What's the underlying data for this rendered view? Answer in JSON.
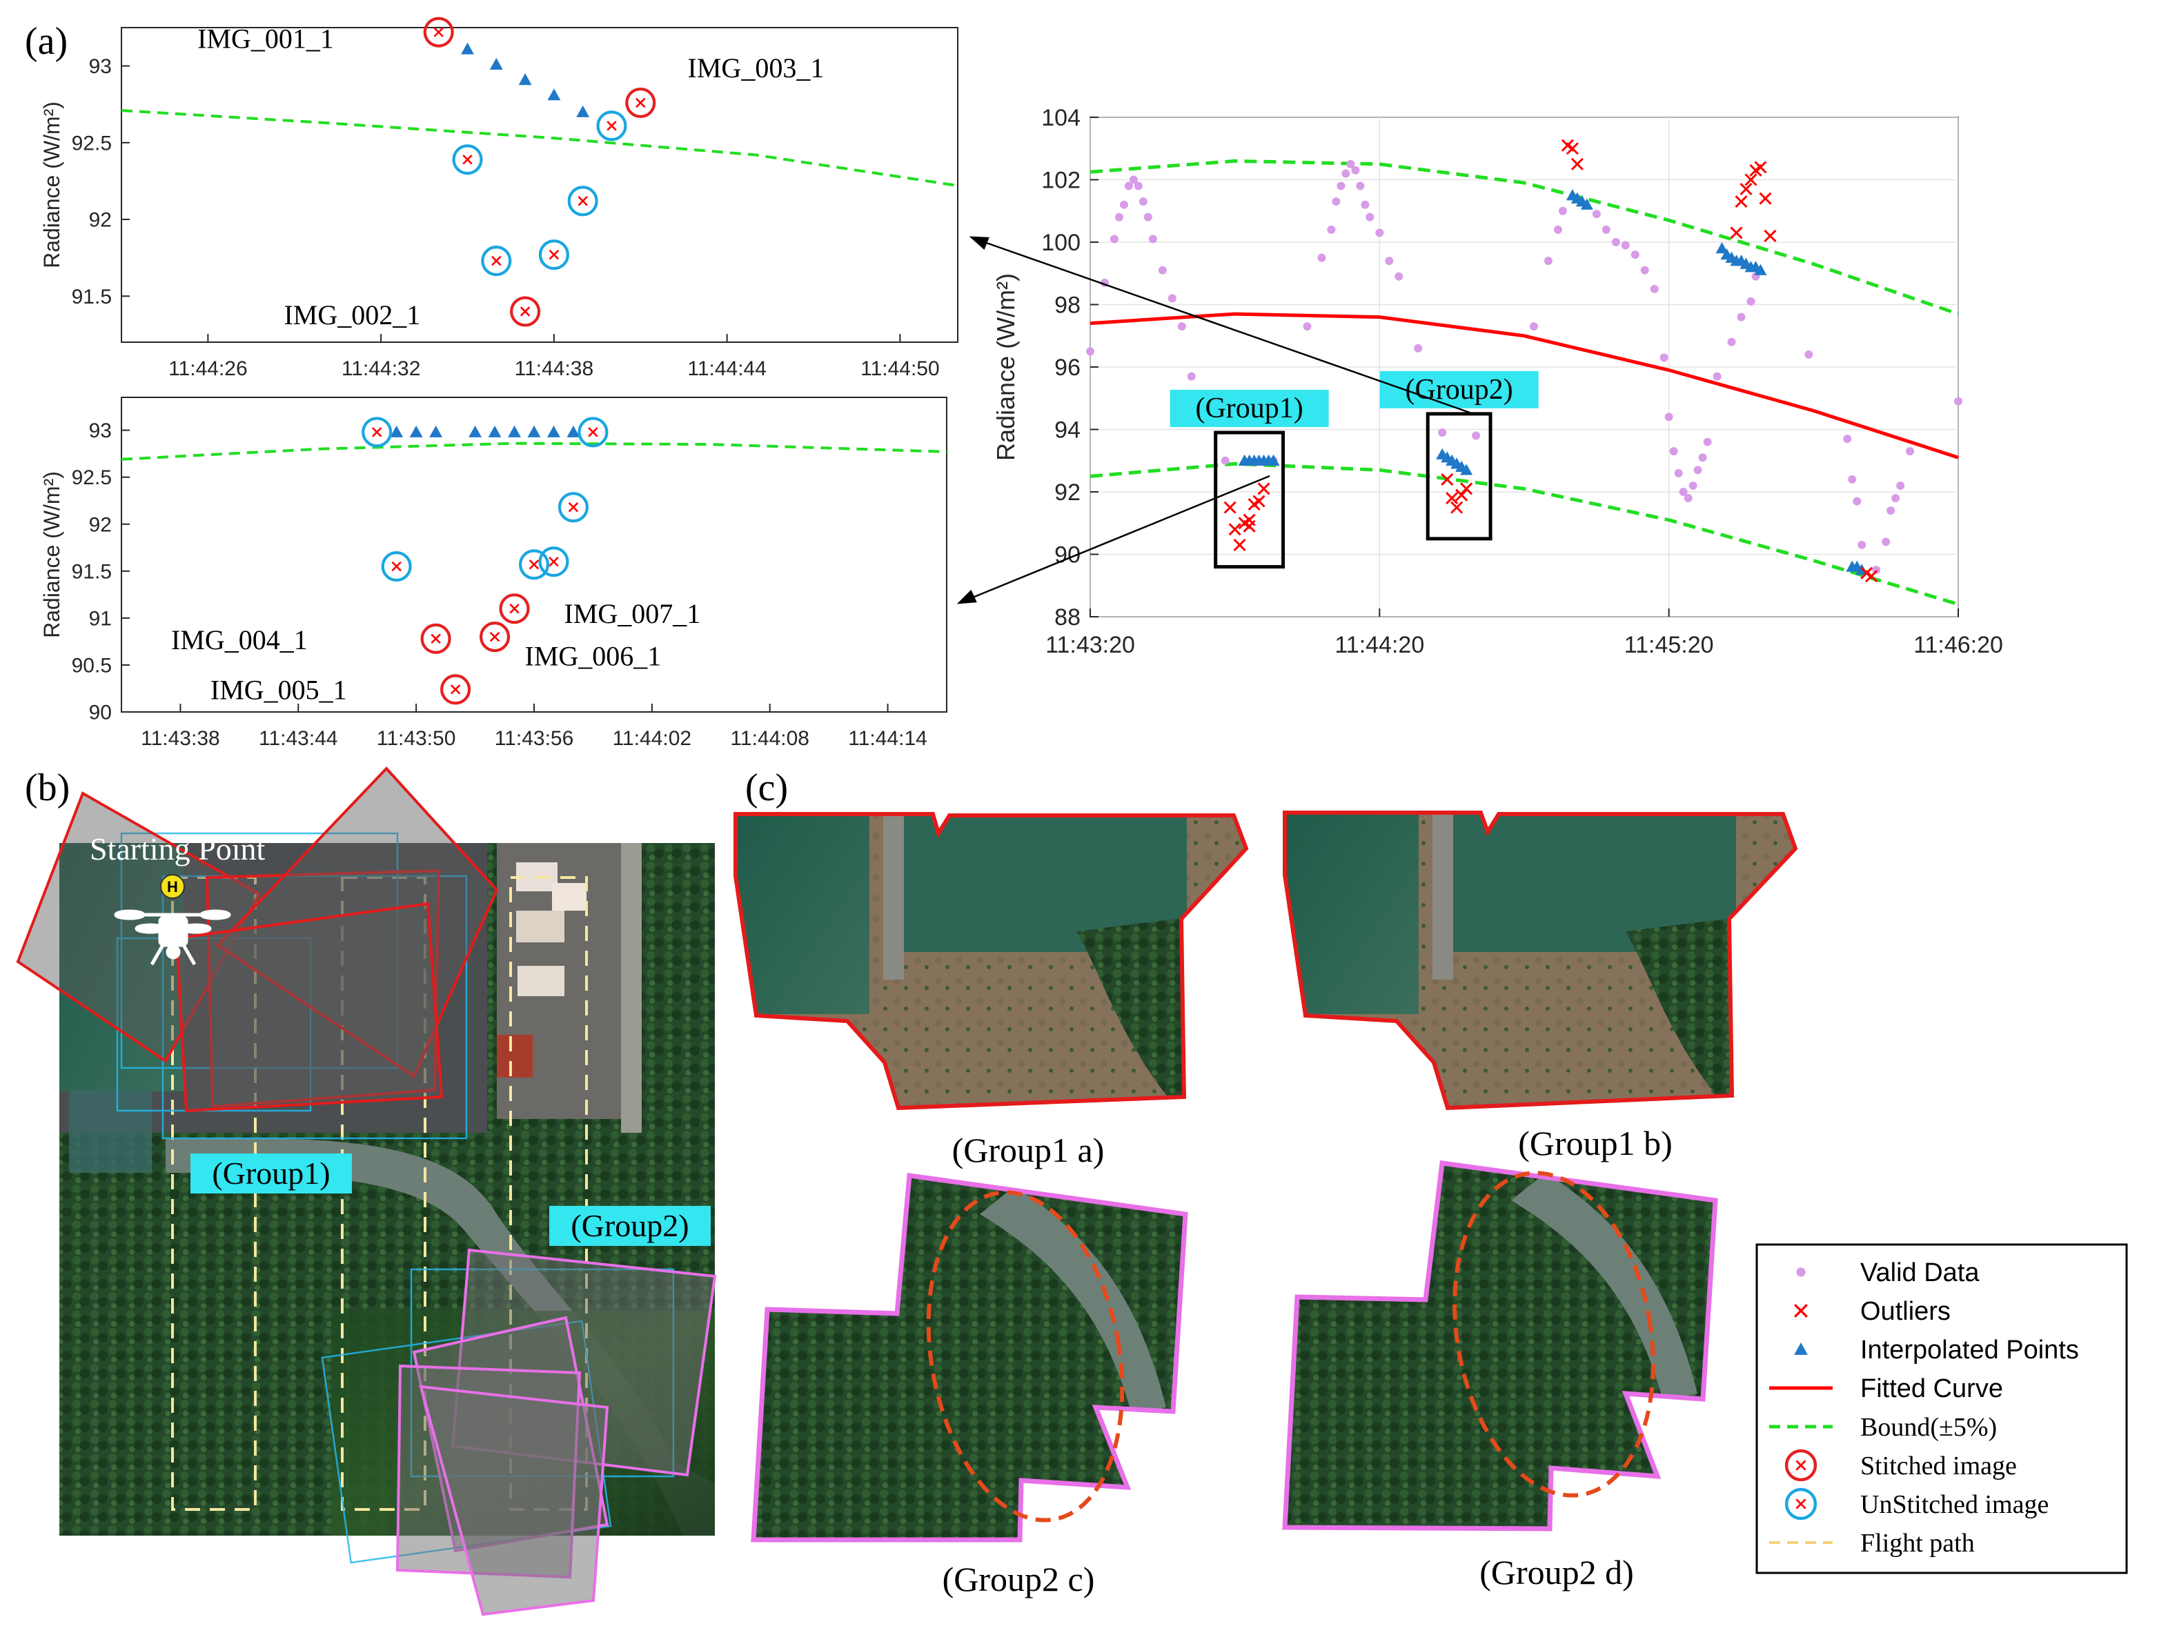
{
  "panels": {
    "a": "(a)",
    "b": "(b)",
    "c": "(c)"
  },
  "colors": {
    "valid": "#d89be8",
    "outlier": "#ff0000",
    "interp": "#1f78c8",
    "fit": "#ff0000",
    "bound": "#22dd22",
    "stitched": "#e62020",
    "unstitched": "#1aa6e0",
    "flight": "#f5d27a",
    "group2_outline": "#e870e8",
    "group_label_bg": "#33e6f0",
    "ellipse": "#e64a1a"
  },
  "chart_data": [
    {
      "id": "a1",
      "type": "scatter",
      "ylabel": "Radiance (W/m²)",
      "ylim": [
        91.2,
        93.25
      ],
      "xlim": [
        "11:44:23",
        "11:44:52"
      ],
      "yticks": [
        91.5,
        92,
        92.5,
        93
      ],
      "xticks": [
        "11:44:26",
        "11:44:32",
        "11:44:38",
        "11:44:44",
        "11:44:50"
      ],
      "bound_curve": [
        [
          "11:44:23",
          92.71
        ],
        [
          "11:44:30",
          92.63
        ],
        [
          "11:44:38",
          92.53
        ],
        [
          "11:44:45",
          92.42
        ],
        [
          "11:44:52",
          92.22
        ]
      ],
      "interpolated": [
        [
          "11:44:35",
          93.11
        ],
        [
          "11:44:36",
          93.01
        ],
        [
          "11:44:37",
          92.91
        ],
        [
          "11:44:38",
          92.81
        ],
        [
          "11:44:39",
          92.7
        ]
      ],
      "stitched": [
        [
          "11:44:34",
          93.22
        ],
        [
          "11:44:41",
          92.76
        ],
        [
          "11:44:37",
          91.4
        ]
      ],
      "unstitched": [
        [
          "11:44:35",
          92.39
        ],
        [
          "11:44:36",
          91.73
        ],
        [
          "11:44:38",
          91.77
        ],
        [
          "11:44:39",
          92.12
        ],
        [
          "11:44:40",
          92.61
        ]
      ],
      "labels": [
        {
          "text": "IMG_001_1",
          "x": "11:44:28",
          "y": 93.18
        },
        {
          "text": "IMG_003_1",
          "x": "11:44:45",
          "y": 92.99
        },
        {
          "text": "IMG_002_1",
          "x": "11:44:31",
          "y": 91.38
        }
      ]
    },
    {
      "id": "a2",
      "type": "scatter",
      "ylabel": "Radiance (W/m²)",
      "ylim": [
        90,
        93.35
      ],
      "xlim": [
        "11:43:35",
        "11:44:17"
      ],
      "yticks": [
        90,
        90.5,
        91,
        91.5,
        92,
        92.5,
        93
      ],
      "xticks": [
        "11:43:38",
        "11:43:44",
        "11:43:50",
        "11:43:56",
        "11:44:02",
        "11:44:08",
        "11:44:14"
      ],
      "bound_curve": [
        [
          "11:43:35",
          92.69
        ],
        [
          "11:43:45",
          92.8
        ],
        [
          "11:43:55",
          92.86
        ],
        [
          "11:44:05",
          92.85
        ],
        [
          "11:44:17",
          92.77
        ]
      ],
      "interpolated": [
        [
          "11:43:49",
          92.98
        ],
        [
          "11:43:50",
          92.98
        ],
        [
          "11:43:51",
          92.98
        ],
        [
          "11:43:53",
          92.98
        ],
        [
          "11:43:54",
          92.98
        ],
        [
          "11:43:55",
          92.98
        ],
        [
          "11:43:56",
          92.98
        ],
        [
          "11:43:57",
          92.98
        ],
        [
          "11:43:58",
          92.98
        ]
      ],
      "stitched": [
        [
          "11:43:51",
          90.78
        ],
        [
          "11:43:52",
          90.24
        ],
        [
          "11:43:54",
          90.8
        ],
        [
          "11:43:55",
          91.1
        ]
      ],
      "unstitched": [
        [
          "11:43:48",
          92.98
        ],
        [
          "11:43:59",
          92.98
        ],
        [
          "11:43:58",
          92.18
        ],
        [
          "11:43:57",
          91.6
        ],
        [
          "11:43:56",
          91.57
        ],
        [
          "11:43:49",
          91.55
        ]
      ],
      "labels": [
        {
          "text": "IMG_004_1",
          "x": "11:43:41",
          "y": 90.77
        },
        {
          "text": "IMG_005_1",
          "x": "11:43:43",
          "y": 90.24
        },
        {
          "text": "IMG_006_1",
          "x": "11:43:59",
          "y": 90.6
        },
        {
          "text": "IMG_007_1",
          "x": "11:44:01",
          "y": 91.05
        }
      ]
    },
    {
      "id": "main",
      "type": "scatter",
      "ylabel": "Radiance (W/m²)",
      "ylim": [
        88,
        104
      ],
      "xlim": [
        "11:43:20",
        "11:46:20"
      ],
      "yticks": [
        88,
        90,
        92,
        94,
        96,
        98,
        100,
        102,
        104
      ],
      "xticks": [
        "11:43:20",
        "11:44:20",
        "11:45:20",
        "11:46:20"
      ],
      "grid": true,
      "fitted_curve": [
        [
          "11:43:20",
          97.4
        ],
        [
          "11:43:50",
          97.7
        ],
        [
          "11:44:20",
          97.6
        ],
        [
          "11:44:50",
          97.0
        ],
        [
          "11:45:20",
          95.9
        ],
        [
          "11:45:50",
          94.6
        ],
        [
          "11:46:20",
          93.1
        ]
      ],
      "upper_bound": [
        [
          "11:43:20",
          102.25
        ],
        [
          "11:43:50",
          102.6
        ],
        [
          "11:44:20",
          102.5
        ],
        [
          "11:44:50",
          101.9
        ],
        [
          "11:45:20",
          100.7
        ],
        [
          "11:45:50",
          99.3
        ],
        [
          "11:46:20",
          97.7
        ]
      ],
      "lower_bound": [
        [
          "11:43:20",
          92.5
        ],
        [
          "11:43:50",
          92.9
        ],
        [
          "11:44:20",
          92.7
        ],
        [
          "11:44:50",
          92.1
        ],
        [
          "11:45:20",
          91.1
        ],
        [
          "11:45:50",
          89.8
        ],
        [
          "11:46:20",
          88.4
        ]
      ],
      "valid": [
        [
          "11:43:20",
          96.5
        ],
        [
          "11:43:23",
          98.7
        ],
        [
          "11:43:25",
          100.1
        ],
        [
          "11:43:26",
          100.8
        ],
        [
          "11:43:27",
          101.2
        ],
        [
          "11:43:28",
          101.8
        ],
        [
          "11:43:29",
          102
        ],
        [
          "11:43:30",
          101.8
        ],
        [
          "11:43:31",
          101.3
        ],
        [
          "11:43:32",
          100.8
        ],
        [
          "11:43:33",
          100.1
        ],
        [
          "11:43:35",
          99.1
        ],
        [
          "11:43:37",
          98.2
        ],
        [
          "11:43:39",
          97.3
        ],
        [
          "11:43:41",
          95.7
        ],
        [
          "11:43:48",
          93.0
        ],
        [
          "11:43:58",
          93.0
        ],
        [
          "11:44:05",
          97.3
        ],
        [
          "11:44:08",
          99.5
        ],
        [
          "11:44:10",
          100.4
        ],
        [
          "11:44:11",
          101.3
        ],
        [
          "11:44:12",
          101.8
        ],
        [
          "11:44:13",
          102.2
        ],
        [
          "11:44:14",
          102.5
        ],
        [
          "11:44:15",
          102.3
        ],
        [
          "11:44:16",
          101.8
        ],
        [
          "11:44:17",
          101.2
        ],
        [
          "11:44:18",
          100.8
        ],
        [
          "11:44:20",
          100.3
        ],
        [
          "11:44:22",
          99.4
        ],
        [
          "11:44:24",
          98.9
        ],
        [
          "11:44:28",
          96.6
        ],
        [
          "11:44:33",
          93.9
        ],
        [
          "11:44:40",
          93.8
        ],
        [
          "11:44:45",
          95.3
        ],
        [
          "11:44:52",
          97.3
        ],
        [
          "11:44:55",
          99.4
        ],
        [
          "11:44:57",
          100.4
        ],
        [
          "11:44:58",
          101
        ],
        [
          "11:45:05",
          100.9
        ],
        [
          "11:45:07",
          100.4
        ],
        [
          "11:45:09",
          100
        ],
        [
          "11:45:11",
          99.9
        ],
        [
          "11:45:13",
          99.6
        ],
        [
          "11:45:15",
          99.1
        ],
        [
          "11:45:17",
          98.5
        ],
        [
          "11:45:19",
          96.3
        ],
        [
          "11:45:20",
          94.4
        ],
        [
          "11:45:21",
          93.3
        ],
        [
          "11:45:22",
          92.6
        ],
        [
          "11:45:23",
          92.0
        ],
        [
          "11:45:24",
          91.8
        ],
        [
          "11:45:25",
          92.2
        ],
        [
          "11:45:26",
          92.7
        ],
        [
          "11:45:27",
          93.1
        ],
        [
          "11:45:28",
          93.6
        ],
        [
          "11:45:30",
          95.7
        ],
        [
          "11:45:33",
          96.8
        ],
        [
          "11:45:35",
          97.6
        ],
        [
          "11:45:37",
          98.1
        ],
        [
          "11:45:38",
          98.9
        ],
        [
          "11:45:49",
          96.4
        ],
        [
          "11:45:57",
          93.7
        ],
        [
          "11:45:58",
          92.4
        ],
        [
          "11:45:59",
          91.7
        ],
        [
          "11:46:00",
          90.3
        ],
        [
          "11:46:03",
          89.5
        ],
        [
          "11:46:05",
          90.4
        ],
        [
          "11:46:06",
          91.4
        ],
        [
          "11:46:07",
          91.8
        ],
        [
          "11:46:08",
          92.2
        ],
        [
          "11:46:10",
          93.3
        ],
        [
          "11:46:20",
          94.9
        ]
      ],
      "outliers": [
        [
          "11:43:49",
          91.5
        ],
        [
          "11:43:50",
          90.8
        ],
        [
          "11:43:51",
          90.3
        ],
        [
          "11:43:52",
          91.0
        ],
        [
          "11:43:53",
          90.9
        ],
        [
          "11:43:54",
          91.6
        ],
        [
          "11:43:55",
          91.7
        ],
        [
          "11:43:56",
          92.1
        ],
        [
          "11:43:53",
          91.1
        ],
        [
          "11:44:34",
          92.4
        ],
        [
          "11:44:35",
          91.8
        ],
        [
          "11:44:36",
          91.5
        ],
        [
          "11:44:37",
          91.9
        ],
        [
          "11:44:38",
          92.1
        ],
        [
          "11:44:59",
          103.1
        ],
        [
          "11:45:00",
          103.0
        ],
        [
          "11:45:01",
          102.5
        ],
        [
          "11:45:34",
          100.3
        ],
        [
          "11:45:35",
          101.3
        ],
        [
          "11:45:36",
          101.7
        ],
        [
          "11:45:37",
          102.0
        ],
        [
          "11:45:38",
          102.3
        ],
        [
          "11:45:39",
          102.4
        ],
        [
          "11:45:40",
          101.4
        ],
        [
          "11:45:41",
          100.2
        ],
        [
          "11:46:01",
          89.4
        ],
        [
          "11:46:02",
          89.3
        ]
      ],
      "interpolated": [
        [
          "11:43:52",
          93.0
        ],
        [
          "11:43:53",
          93.0
        ],
        [
          "11:43:54",
          93.0
        ],
        [
          "11:43:55",
          93.0
        ],
        [
          "11:43:56",
          93.0
        ],
        [
          "11:43:57",
          93.0
        ],
        [
          "11:43:58",
          93.0
        ],
        [
          "11:44:33",
          93.2
        ],
        [
          "11:44:34",
          93.1
        ],
        [
          "11:44:35",
          93.0
        ],
        [
          "11:44:36",
          92.9
        ],
        [
          "11:44:37",
          92.8
        ],
        [
          "11:44:38",
          92.7
        ],
        [
          "11:45:00",
          101.5
        ],
        [
          "11:45:01",
          101.4
        ],
        [
          "11:45:02",
          101.3
        ],
        [
          "11:45:03",
          101.2
        ],
        [
          "11:45:31",
          99.8
        ],
        [
          "11:45:32",
          99.6
        ],
        [
          "11:45:33",
          99.5
        ],
        [
          "11:45:34",
          99.4
        ],
        [
          "11:45:35",
          99.4
        ],
        [
          "11:45:36",
          99.3
        ],
        [
          "11:45:37",
          99.2
        ],
        [
          "11:45:38",
          99.2
        ],
        [
          "11:45:39",
          99.1
        ],
        [
          "11:45:58",
          89.6
        ],
        [
          "11:45:59",
          89.6
        ],
        [
          "11:46:00",
          89.5
        ]
      ],
      "groups": [
        {
          "label": "(Group1)",
          "x0": "11:43:46",
          "x1": "11:44:00",
          "y0": 89.6,
          "y1": 93.9
        },
        {
          "label": "(Group2)",
          "x0": "11:44:30",
          "x1": "11:44:43",
          "y0": 90.5,
          "y1": 94.5
        }
      ]
    }
  ],
  "legend": {
    "items": [
      {
        "key": "valid",
        "label": "Valid Data"
      },
      {
        "key": "outlier",
        "label": "Outliers"
      },
      {
        "key": "interp",
        "label": "Interpolated Points"
      },
      {
        "key": "fit",
        "label": "Fitted Curve"
      },
      {
        "key": "bound",
        "label": "Bound(±5%)"
      },
      {
        "key": "stitched",
        "label": "Stitched image"
      },
      {
        "key": "unstitched",
        "label": "UnStitched image"
      },
      {
        "key": "flight",
        "label": "Flight path"
      }
    ]
  },
  "map_b": {
    "starting_point": "Starting Point",
    "home_marker": "H",
    "group1": "(Group1)",
    "group2": "(Group2)"
  },
  "panel_c": {
    "captions": [
      "(Group1 a)",
      "(Group1 b)",
      "(Group2 c)",
      "(Group2 d)"
    ]
  }
}
